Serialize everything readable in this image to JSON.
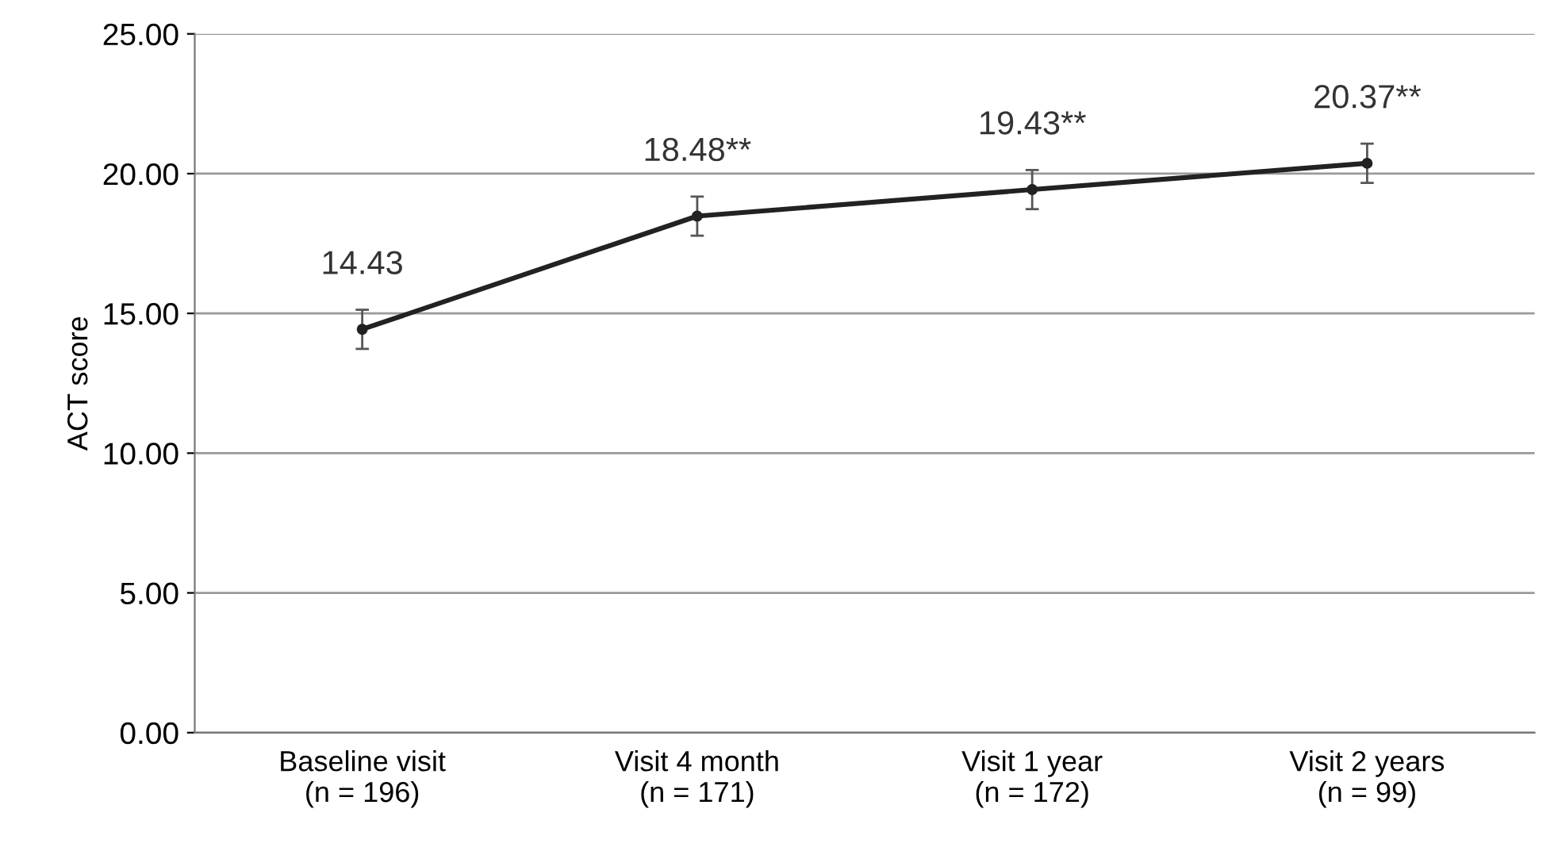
{
  "chart_data": {
    "type": "line",
    "ylabel": "ACT score",
    "categories": [
      "Baseline visit\n(n = 196)",
      "Visit 4 month\n(n = 171)",
      "Visit 1 year\n(n = 172)",
      "Visit 2 years\n(n = 99)"
    ],
    "values": [
      14.43,
      18.48,
      19.43,
      20.37
    ],
    "errors": [
      0.7,
      0.7,
      0.7,
      0.7
    ],
    "value_labels": [
      "14.43",
      "18.48**",
      "19.43**",
      "20.37**"
    ],
    "color": "#222222",
    "marker": "circle",
    "line_style": "solid",
    "ylim": [
      0,
      25
    ],
    "yticks": [
      {
        "value": 0,
        "label": "0.00"
      },
      {
        "value": 5,
        "label": "5.00"
      },
      {
        "value": 10,
        "label": "10.00"
      },
      {
        "value": 15,
        "label": "15.00"
      },
      {
        "value": 20,
        "label": "20.00"
      },
      {
        "value": 25,
        "label": "25.00"
      }
    ],
    "grid": "y",
    "legend": false
  }
}
